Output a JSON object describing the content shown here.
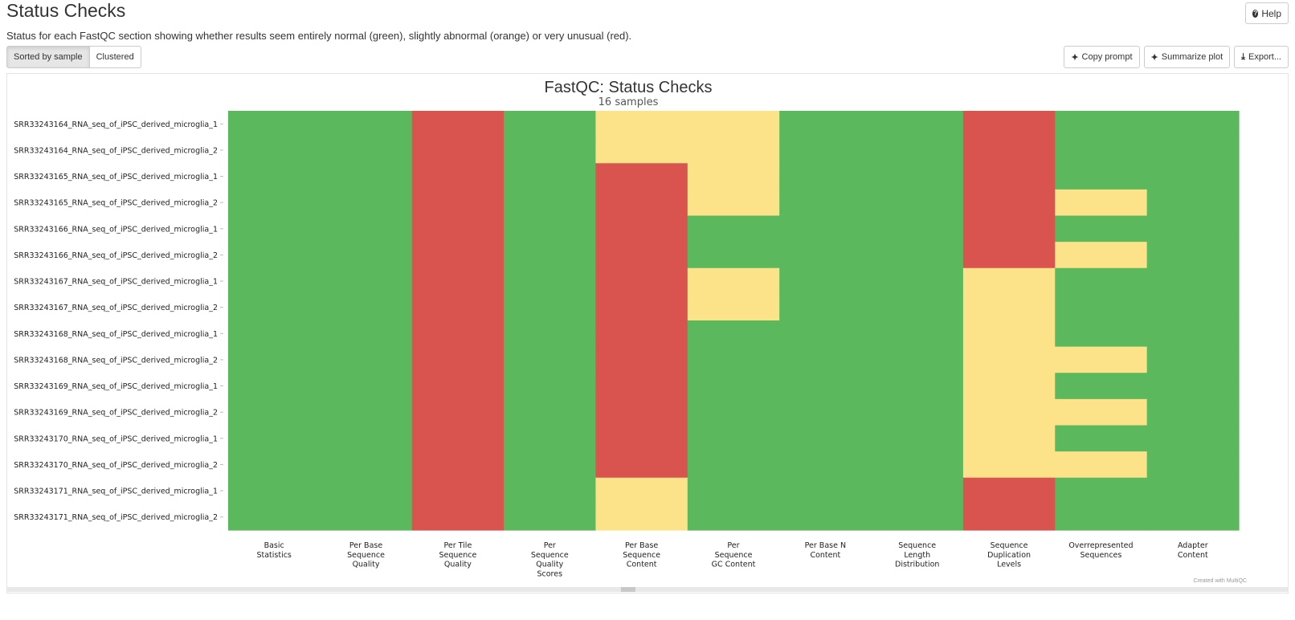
{
  "header": {
    "title": "Status Checks",
    "help_label": "Help",
    "description": "Status for each FastQC section showing whether results seem entirely normal (green), slightly abnormal (orange) or very unusual (red)."
  },
  "toggle": {
    "sorted_label": "Sorted by sample",
    "clustered_label": "Clustered"
  },
  "tools": {
    "copy_prompt_label": "Copy prompt",
    "summarize_label": "Summarize plot",
    "export_label": "Export..."
  },
  "colors": {
    "pass": "#5cb85c",
    "warn": "#fce38a",
    "fail": "#d9534f"
  },
  "chart_data": {
    "type": "heatmap",
    "title": "FastQC: Status Checks",
    "subtitle": "16 samples",
    "credit": "Created with MultiQC",
    "columns": [
      [
        "Basic",
        "Statistics"
      ],
      [
        "Per Base",
        "Sequence",
        "Quality"
      ],
      [
        "Per Tile",
        "Sequence",
        "Quality"
      ],
      [
        "Per",
        "Sequence",
        "Quality",
        "Scores"
      ],
      [
        "Per Base",
        "Sequence",
        "Content"
      ],
      [
        "Per",
        "Sequence",
        "GC Content"
      ],
      [
        "Per Base N",
        "Content"
      ],
      [
        "Sequence",
        "Length",
        "Distribution"
      ],
      [
        "Sequence",
        "Duplication",
        "Levels"
      ],
      [
        "Overrepresented",
        "Sequences"
      ],
      [
        "Adapter",
        "Content"
      ]
    ],
    "rows": [
      "SRR33243164_RNA_seq_of_iPSC_derived_microglia_1",
      "SRR33243164_RNA_seq_of_iPSC_derived_microglia_2",
      "SRR33243165_RNA_seq_of_iPSC_derived_microglia_1",
      "SRR33243165_RNA_seq_of_iPSC_derived_microglia_2",
      "SRR33243166_RNA_seq_of_iPSC_derived_microglia_1",
      "SRR33243166_RNA_seq_of_iPSC_derived_microglia_2",
      "SRR33243167_RNA_seq_of_iPSC_derived_microglia_1",
      "SRR33243167_RNA_seq_of_iPSC_derived_microglia_2",
      "SRR33243168_RNA_seq_of_iPSC_derived_microglia_1",
      "SRR33243168_RNA_seq_of_iPSC_derived_microglia_2",
      "SRR33243169_RNA_seq_of_iPSC_derived_microglia_1",
      "SRR33243169_RNA_seq_of_iPSC_derived_microglia_2",
      "SRR33243170_RNA_seq_of_iPSC_derived_microglia_1",
      "SRR33243170_RNA_seq_of_iPSC_derived_microglia_2",
      "SRR33243171_RNA_seq_of_iPSC_derived_microglia_1",
      "SRR33243171_RNA_seq_of_iPSC_derived_microglia_2"
    ],
    "values": [
      [
        "pass",
        "pass",
        "fail",
        "pass",
        "warn",
        "warn",
        "pass",
        "pass",
        "fail",
        "pass",
        "pass"
      ],
      [
        "pass",
        "pass",
        "fail",
        "pass",
        "warn",
        "warn",
        "pass",
        "pass",
        "fail",
        "pass",
        "pass"
      ],
      [
        "pass",
        "pass",
        "fail",
        "pass",
        "fail",
        "warn",
        "pass",
        "pass",
        "fail",
        "pass",
        "pass"
      ],
      [
        "pass",
        "pass",
        "fail",
        "pass",
        "fail",
        "warn",
        "pass",
        "pass",
        "fail",
        "warn",
        "pass"
      ],
      [
        "pass",
        "pass",
        "fail",
        "pass",
        "fail",
        "pass",
        "pass",
        "pass",
        "fail",
        "pass",
        "pass"
      ],
      [
        "pass",
        "pass",
        "fail",
        "pass",
        "fail",
        "pass",
        "pass",
        "pass",
        "fail",
        "warn",
        "pass"
      ],
      [
        "pass",
        "pass",
        "fail",
        "pass",
        "fail",
        "warn",
        "pass",
        "pass",
        "warn",
        "pass",
        "pass"
      ],
      [
        "pass",
        "pass",
        "fail",
        "pass",
        "fail",
        "warn",
        "pass",
        "pass",
        "warn",
        "pass",
        "pass"
      ],
      [
        "pass",
        "pass",
        "fail",
        "pass",
        "fail",
        "pass",
        "pass",
        "pass",
        "warn",
        "pass",
        "pass"
      ],
      [
        "pass",
        "pass",
        "fail",
        "pass",
        "fail",
        "pass",
        "pass",
        "pass",
        "warn",
        "warn",
        "pass"
      ],
      [
        "pass",
        "pass",
        "fail",
        "pass",
        "fail",
        "pass",
        "pass",
        "pass",
        "warn",
        "pass",
        "pass"
      ],
      [
        "pass",
        "pass",
        "fail",
        "pass",
        "fail",
        "pass",
        "pass",
        "pass",
        "warn",
        "warn",
        "pass"
      ],
      [
        "pass",
        "pass",
        "fail",
        "pass",
        "fail",
        "pass",
        "pass",
        "pass",
        "warn",
        "pass",
        "pass"
      ],
      [
        "pass",
        "pass",
        "fail",
        "pass",
        "fail",
        "pass",
        "pass",
        "pass",
        "warn",
        "warn",
        "pass"
      ],
      [
        "pass",
        "pass",
        "fail",
        "pass",
        "warn",
        "pass",
        "pass",
        "pass",
        "fail",
        "pass",
        "pass"
      ],
      [
        "pass",
        "pass",
        "fail",
        "pass",
        "warn",
        "pass",
        "pass",
        "pass",
        "fail",
        "pass",
        "pass"
      ]
    ]
  }
}
